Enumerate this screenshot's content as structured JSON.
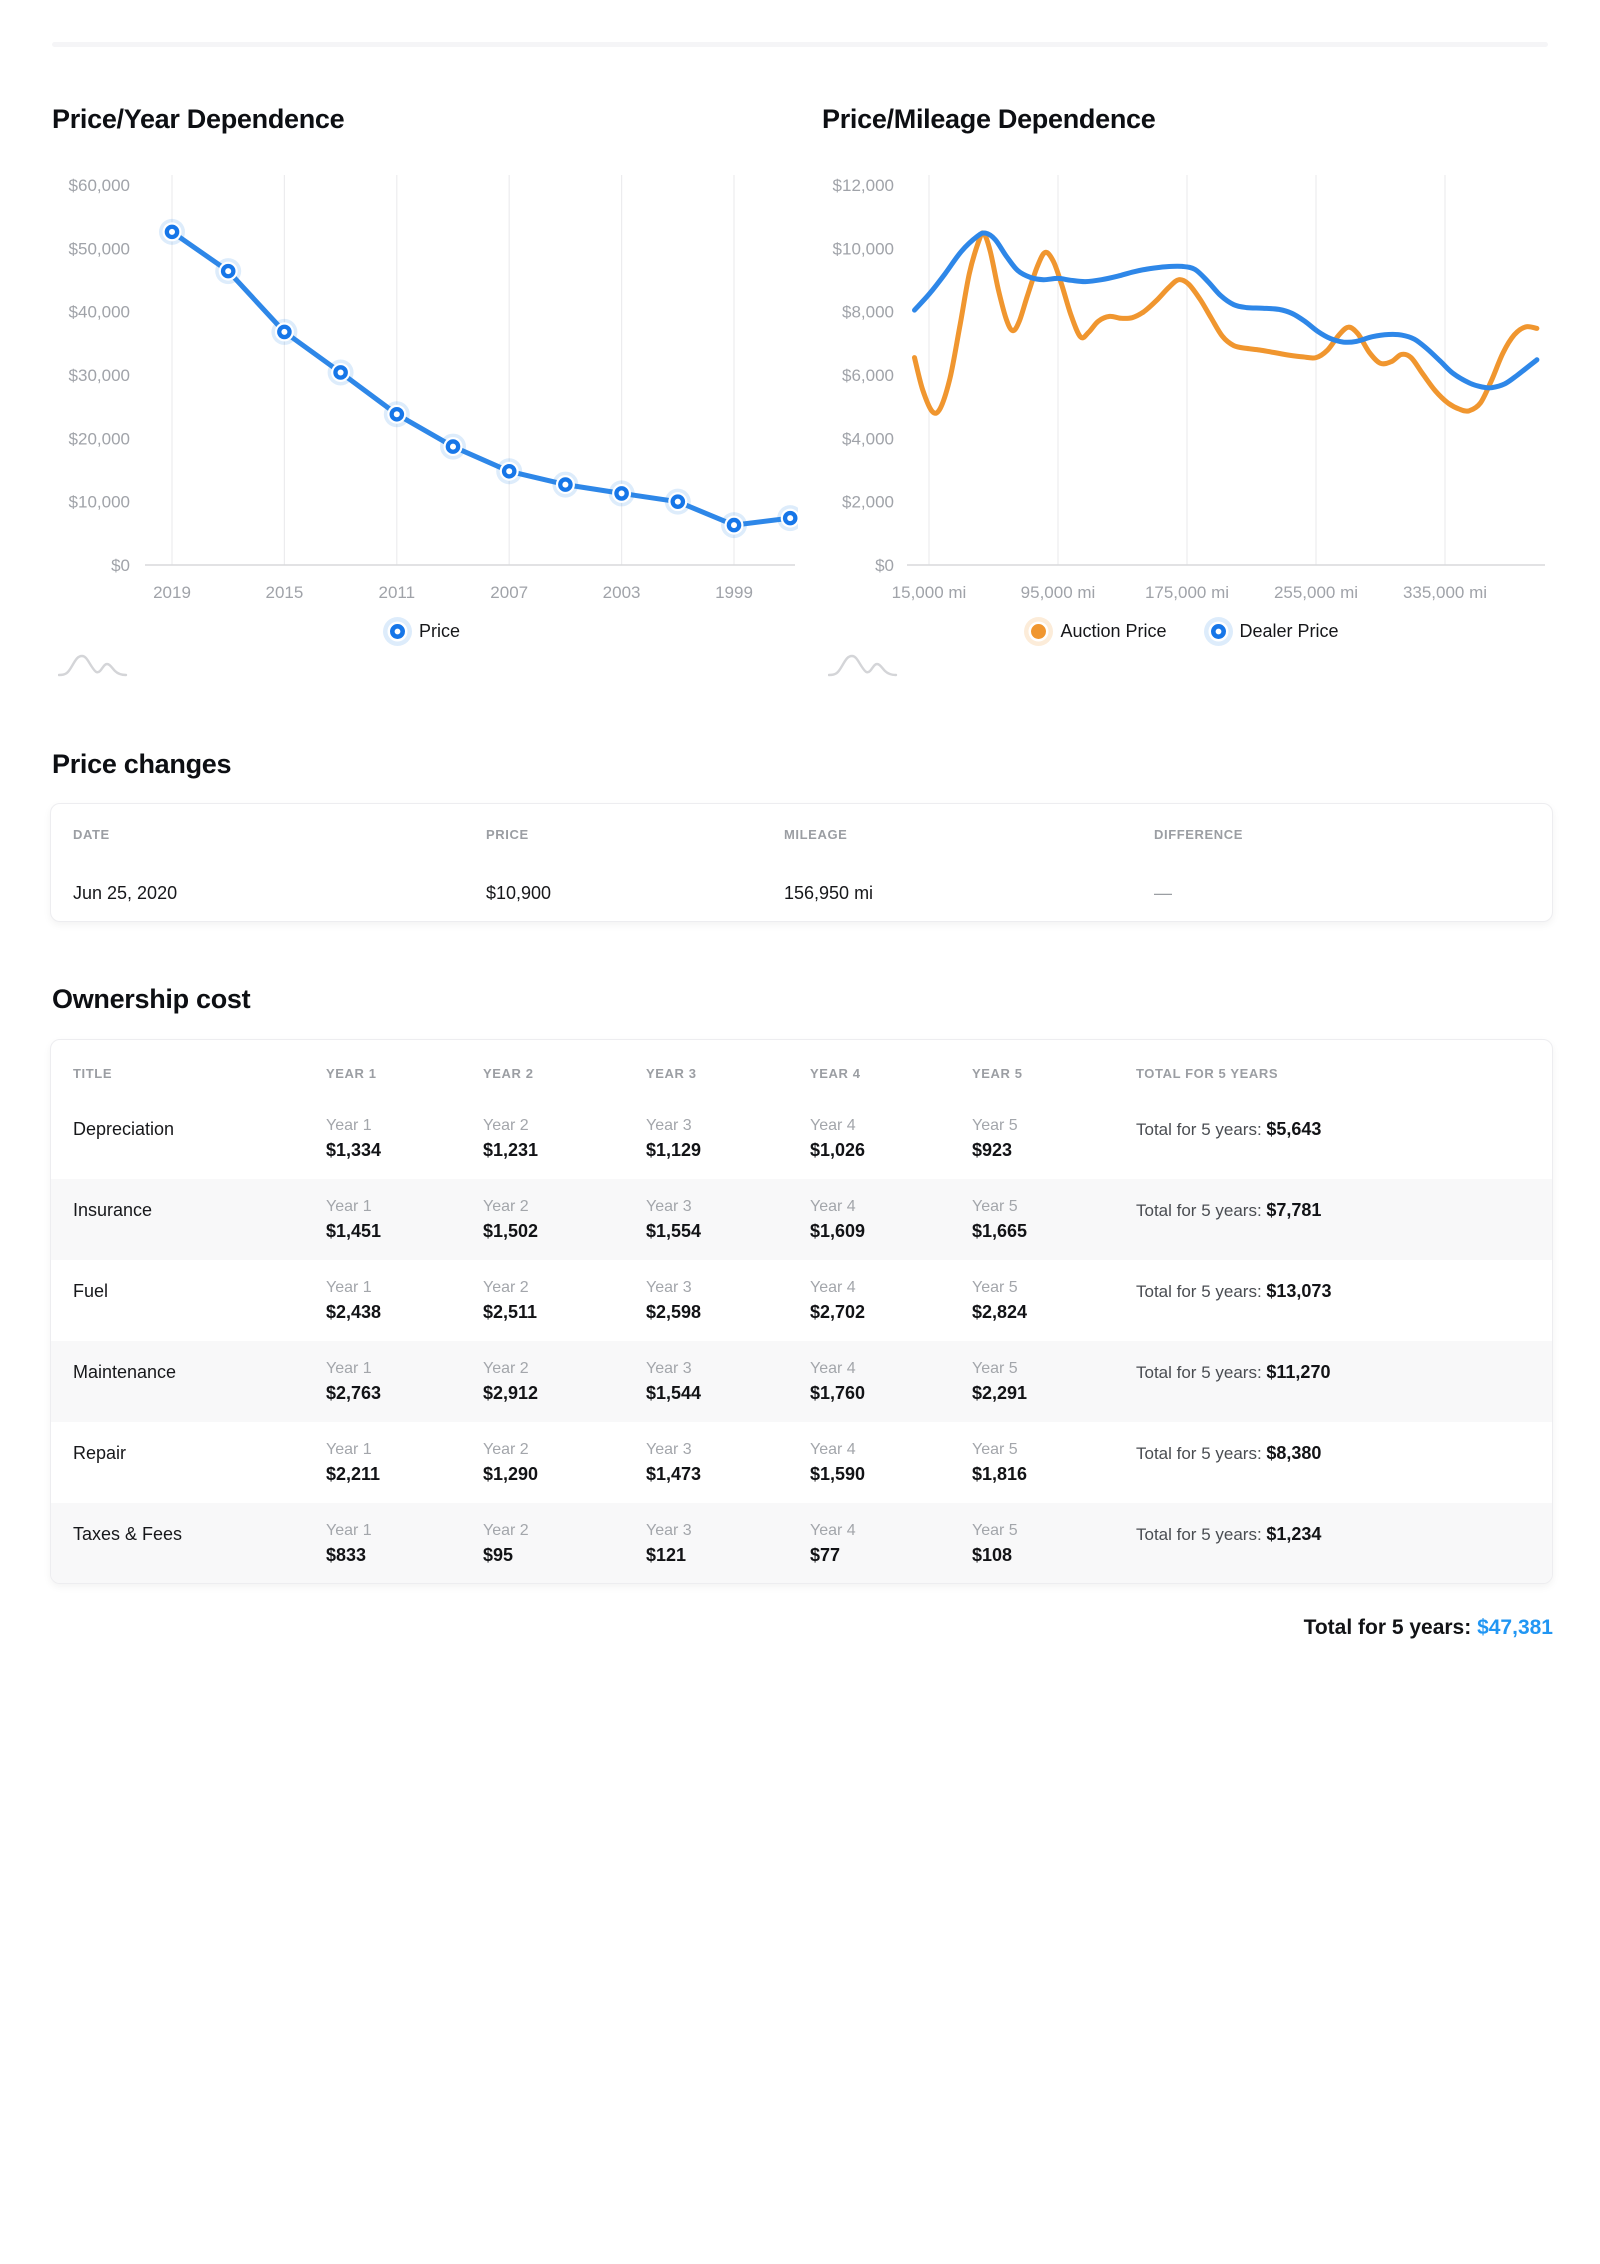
{
  "chart_data": [
    {
      "type": "line",
      "title": "Price/Year Dependence",
      "categories": [
        2019,
        2017,
        2015,
        2013,
        2011,
        2009,
        2007,
        2005,
        2003,
        2001,
        1999,
        1997
      ],
      "series": [
        {
          "name": "Price",
          "color": "#2e87e8",
          "dot_color": "#1676e8",
          "values": [
            52600,
            46400,
            36800,
            30400,
            23800,
            18700,
            14800,
            12700,
            11300,
            10000,
            6300,
            7400
          ]
        }
      ],
      "x_tick_labels": [
        "2019",
        "2015",
        "2011",
        "2007",
        "2003",
        "1999"
      ],
      "y_tick_labels": [
        "$60,000",
        "$50,000",
        "$40,000",
        "$30,000",
        "$20,000",
        "$10,000",
        "$0"
      ],
      "ylim": [
        0,
        60000
      ],
      "grid": "vertical-only",
      "legend_position": "bottom"
    },
    {
      "type": "line",
      "title": "Price/Mileage Dependence",
      "x_unit": "mi (thousands)",
      "xlim": [
        6,
        392
      ],
      "series": [
        {
          "name": "Auction Price",
          "color": "#f0962f",
          "points": [
            [
              6,
              6550
            ],
            [
              11,
              5550
            ],
            [
              17,
              4850
            ],
            [
              22,
              4950
            ],
            [
              28,
              5900
            ],
            [
              34,
              7500
            ],
            [
              40,
              9200
            ],
            [
              46,
              10250
            ],
            [
              49,
              10470
            ],
            [
              53,
              9900
            ],
            [
              58,
              8700
            ],
            [
              63,
              7750
            ],
            [
              67,
              7400
            ],
            [
              71,
              7700
            ],
            [
              76,
              8500
            ],
            [
              82,
              9400
            ],
            [
              87,
              9870
            ],
            [
              92,
              9600
            ],
            [
              97,
              8900
            ],
            [
              103,
              7900
            ],
            [
              109,
              7200
            ],
            [
              114,
              7350
            ],
            [
              120,
              7700
            ],
            [
              127,
              7850
            ],
            [
              134,
              7790
            ],
            [
              141,
              7810
            ],
            [
              148,
              7990
            ],
            [
              156,
              8350
            ],
            [
              164,
              8780
            ],
            [
              170,
              9010
            ],
            [
              176,
              8870
            ],
            [
              183,
              8400
            ],
            [
              190,
              7800
            ],
            [
              197,
              7220
            ],
            [
              204,
              6930
            ],
            [
              212,
              6840
            ],
            [
              220,
              6790
            ],
            [
              229,
              6710
            ],
            [
              238,
              6630
            ],
            [
              247,
              6570
            ],
            [
              255,
              6550
            ],
            [
              262,
              6780
            ],
            [
              269,
              7250
            ],
            [
              275,
              7510
            ],
            [
              281,
              7300
            ],
            [
              288,
              6720
            ],
            [
              295,
              6370
            ],
            [
              302,
              6430
            ],
            [
              308,
              6650
            ],
            [
              314,
              6550
            ],
            [
              321,
              6050
            ],
            [
              329,
              5500
            ],
            [
              337,
              5110
            ],
            [
              344,
              4920
            ],
            [
              350,
              4870
            ],
            [
              357,
              5120
            ],
            [
              364,
              5850
            ],
            [
              371,
              6700
            ],
            [
              378,
              7270
            ],
            [
              385,
              7520
            ],
            [
              392,
              7470
            ]
          ]
        },
        {
          "name": "Dealer Price",
          "color": "#2e87e8",
          "points": [
            [
              6,
              8050
            ],
            [
              15,
              8550
            ],
            [
              25,
              9200
            ],
            [
              35,
              9900
            ],
            [
              45,
              10380
            ],
            [
              50,
              10480
            ],
            [
              56,
              10280
            ],
            [
              63,
              9750
            ],
            [
              70,
              9300
            ],
            [
              78,
              9080
            ],
            [
              86,
              9010
            ],
            [
              95,
              9050
            ],
            [
              103,
              8990
            ],
            [
              112,
              8950
            ],
            [
              122,
              9010
            ],
            [
              132,
              9120
            ],
            [
              142,
              9260
            ],
            [
              152,
              9360
            ],
            [
              162,
              9420
            ],
            [
              172,
              9430
            ],
            [
              180,
              9330
            ],
            [
              188,
              8950
            ],
            [
              196,
              8500
            ],
            [
              204,
              8220
            ],
            [
              212,
              8130
            ],
            [
              222,
              8110
            ],
            [
              232,
              8070
            ],
            [
              240,
              7950
            ],
            [
              248,
              7700
            ],
            [
              256,
              7380
            ],
            [
              264,
              7150
            ],
            [
              272,
              7040
            ],
            [
              280,
              7060
            ],
            [
              290,
              7210
            ],
            [
              300,
              7280
            ],
            [
              308,
              7260
            ],
            [
              316,
              7130
            ],
            [
              324,
              6820
            ],
            [
              332,
              6440
            ],
            [
              340,
              6050
            ],
            [
              350,
              5750
            ],
            [
              358,
              5620
            ],
            [
              364,
              5600
            ],
            [
              372,
              5720
            ],
            [
              380,
              6000
            ],
            [
              387,
              6280
            ],
            [
              392,
              6480
            ]
          ]
        }
      ],
      "x_ticks": [
        {
          "label": "15,000 mi",
          "value": 15
        },
        {
          "label": "95,000 mi",
          "value": 95
        },
        {
          "label": "175,000 mi",
          "value": 175
        },
        {
          "label": "255,000 mi",
          "value": 255
        },
        {
          "label": "335,000 mi",
          "value": 335
        }
      ],
      "y_tick_labels": [
        "$12,000",
        "$10,000",
        "$8,000",
        "$6,000",
        "$4,000",
        "$2,000",
        "$0"
      ],
      "ylim": [
        0,
        12000
      ],
      "grid": "vertical-only",
      "legend_position": "bottom"
    }
  ],
  "price_changes": {
    "heading": "Price changes",
    "columns": [
      "DATE",
      "PRICE",
      "MILEAGE",
      "DIFFERENCE"
    ],
    "rows": [
      {
        "date": "Jun 25, 2020",
        "price": "$10,900",
        "mileage": "156,950 mi",
        "difference": "—"
      }
    ]
  },
  "ownership": {
    "heading": "Ownership cost",
    "columns": [
      "TITLE",
      "YEAR 1",
      "YEAR 2",
      "YEAR 3",
      "YEAR 4",
      "YEAR 5",
      "TOTAL FOR 5 YEARS"
    ],
    "year_labels": [
      "Year 1",
      "Year 2",
      "Year 3",
      "Year 4",
      "Year 5"
    ],
    "total_prefix": "Total for 5 years:",
    "rows": [
      {
        "title": "Depreciation",
        "values": [
          "$1,334",
          "$1,231",
          "$1,129",
          "$1,026",
          "$923"
        ],
        "total": "$5,643"
      },
      {
        "title": "Insurance",
        "values": [
          "$1,451",
          "$1,502",
          "$1,554",
          "$1,609",
          "$1,665"
        ],
        "total": "$7,781"
      },
      {
        "title": "Fuel",
        "values": [
          "$2,438",
          "$2,511",
          "$2,598",
          "$2,702",
          "$2,824"
        ],
        "total": "$13,073"
      },
      {
        "title": "Maintenance",
        "values": [
          "$2,763",
          "$2,912",
          "$1,544",
          "$1,760",
          "$2,291"
        ],
        "total": "$11,270"
      },
      {
        "title": "Repair",
        "values": [
          "$2,211",
          "$1,290",
          "$1,473",
          "$1,590",
          "$1,816"
        ],
        "total": "$8,380"
      },
      {
        "title": "Taxes & Fees",
        "values": [
          "$833",
          "$95",
          "$121",
          "$77",
          "$108"
        ],
        "total": "$1,234"
      }
    ]
  },
  "grand_total": {
    "label": "Total for 5 years:",
    "value": "$47,381",
    "value_color": "#2196f3"
  },
  "colors": {
    "accent_blue": "#2196f3",
    "line_blue": "#2e87e8",
    "line_orange": "#f0962f",
    "gridline": "#ececee",
    "axis_text": "#a0a3a9",
    "muted_text": "#9b9ea3"
  }
}
